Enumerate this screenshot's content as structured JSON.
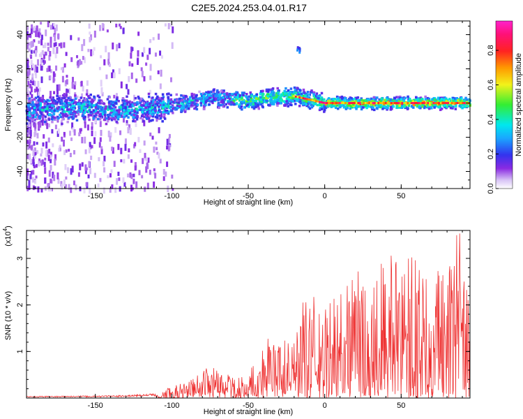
{
  "title": "C2E5.2024.253.04.01.R17",
  "chart_data": [
    {
      "type": "heatmap",
      "xlabel": "Height of straight line (km)",
      "ylabel": "Frequency (Hz)",
      "xlim": [
        -195,
        95
      ],
      "ylim": [
        -50,
        48
      ],
      "xticks": [
        -150,
        -100,
        -50,
        0,
        50
      ],
      "yticks": [
        -40,
        -20,
        0,
        20,
        40
      ],
      "colorbar": {
        "label": "Normalized spectral amplitude",
        "range": [
          0,
          0.97
        ],
        "ticks": [
          0,
          0.2,
          0.4,
          0.6,
          0.8
        ],
        "tick_labels": [
          "0.0",
          "0.2",
          "0.4",
          "0.6",
          "0.8"
        ],
        "colormap": "rainbow (white-purple-blue-cyan-green-yellow-orange-red-magenta)"
      },
      "ridge": {
        "description": "dominant frequency ridge vs height",
        "x": [
          -195,
          -170,
          -150,
          -130,
          -110,
          -100,
          -85,
          -75,
          -60,
          -50,
          -40,
          -30,
          -20,
          -10,
          0,
          20,
          40,
          60,
          80,
          95
        ],
        "y": [
          -4,
          -3,
          -3,
          -4,
          -3,
          -1,
          1,
          3,
          2,
          1,
          3,
          4,
          4,
          2,
          0,
          0,
          0,
          0,
          0,
          0
        ]
      },
      "isolated_blob": {
        "x": -17,
        "y": 31
      }
    },
    {
      "type": "line",
      "xlabel": "Height of straight line (km)",
      "ylabel": "SNR (10 * v/v)",
      "y_multiplier_label": "(x10",
      "y_multiplier_exponent": "4",
      "xlim": [
        -195,
        95
      ],
      "ylim": [
        0,
        3.6
      ],
      "xticks": [
        -150,
        -100,
        -50,
        0,
        50
      ],
      "yticks": [
        1,
        2,
        3
      ],
      "color": "#ee3030",
      "envelope": {
        "description": "approximate upper envelope of SNR (x10^4) vs height",
        "x": [
          -195,
          -150,
          -130,
          -110,
          -100,
          -90,
          -75,
          -60,
          -50,
          -38,
          -20,
          -12,
          0,
          10,
          20,
          30,
          40,
          50,
          60,
          70,
          80,
          88,
          95
        ],
        "y": [
          0.04,
          0.05,
          0.06,
          0.1,
          0.25,
          0.35,
          0.7,
          0.45,
          0.55,
          1.35,
          1.2,
          2.4,
          1.9,
          2.55,
          2.85,
          2.55,
          3.15,
          2.9,
          3.1,
          3.15,
          3.2,
          3.6,
          1.9
        ]
      }
    }
  ]
}
